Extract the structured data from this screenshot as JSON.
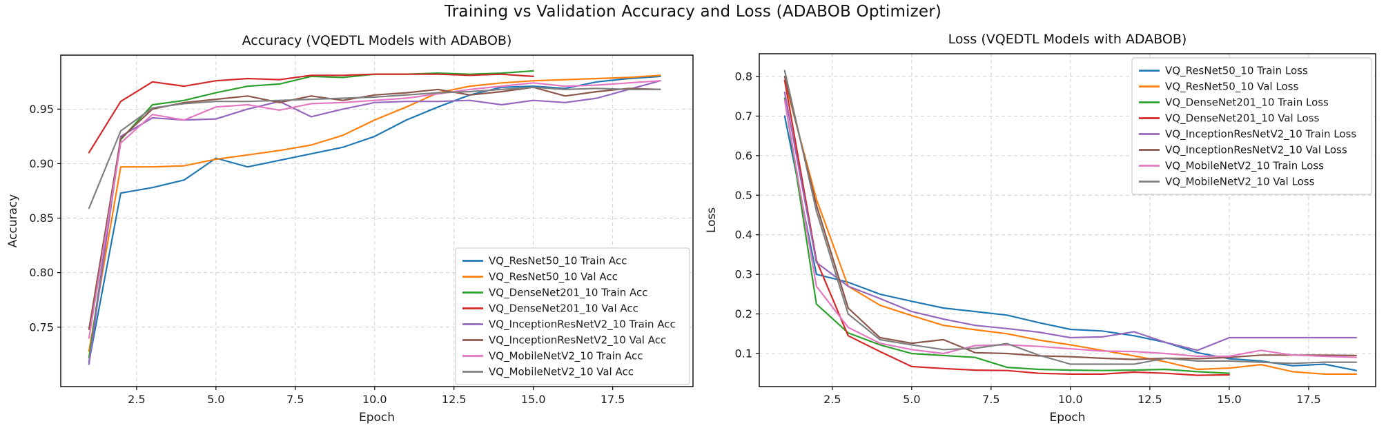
{
  "figure": {
    "title": "Training vs Validation Accuracy and Loss (ADABOB Optimizer)",
    "background": "#ffffff",
    "grid_color": "#cfcfcf",
    "text_color": "#1a1a1a"
  },
  "chart_data": [
    {
      "id": "accuracy",
      "type": "line",
      "title": "Accuracy (VQEDTL Models with ADABOB)",
      "xlabel": "Epoch",
      "ylabel": "Accuracy",
      "xlim": [
        0.11,
        20.03
      ],
      "ylim": [
        0.6955,
        0.9995
      ],
      "xticks": [
        2.5,
        5.0,
        7.5,
        10.0,
        12.5,
        15.0,
        17.5
      ],
      "xtick_labels": [
        "2.5",
        "5.0",
        "7.5",
        "10.0",
        "12.5",
        "15.0",
        "17.5"
      ],
      "yticks": [
        0.75,
        0.8,
        0.85,
        0.9,
        0.95
      ],
      "ytick_labels": [
        "0.75",
        "0.80",
        "0.85",
        "0.90",
        "0.95"
      ],
      "grid": true,
      "legend_position": "lower right",
      "x_start_epoch": 1,
      "series": [
        {
          "name": "VQ_ResNet50_10 Train Acc",
          "color": "#1f77b4",
          "values": [
            0.718,
            0.873,
            0.878,
            0.885,
            0.905,
            0.897,
            0.903,
            0.909,
            0.915,
            0.925,
            0.94,
            0.952,
            0.963,
            0.97,
            0.971,
            0.969,
            0.975,
            0.978,
            0.98
          ]
        },
        {
          "name": "VQ_ResNet50_10 Val Acc",
          "color": "#ff7f0e",
          "values": [
            0.728,
            0.897,
            0.897,
            0.898,
            0.904,
            0.908,
            0.912,
            0.917,
            0.926,
            0.94,
            0.952,
            0.965,
            0.971,
            0.974,
            0.976,
            0.977,
            0.978,
            0.979,
            0.981
          ]
        },
        {
          "name": "VQ_DenseNet201_10 Train Acc",
          "color": "#2ca02c",
          "values": [
            0.722,
            0.922,
            0.954,
            0.958,
            0.965,
            0.971,
            0.973,
            0.98,
            0.979,
            0.982,
            0.982,
            0.983,
            0.982,
            0.983,
            0.985
          ]
        },
        {
          "name": "VQ_DenseNet201_10 Val Acc",
          "color": "#d62728",
          "values": [
            0.91,
            0.957,
            0.975,
            0.971,
            0.976,
            0.978,
            0.977,
            0.981,
            0.981,
            0.982,
            0.982,
            0.982,
            0.981,
            0.982,
            0.98
          ]
        },
        {
          "name": "VQ_InceptionResNetV2_10 Train Acc",
          "color": "#9467bd",
          "values": [
            0.716,
            0.925,
            0.942,
            0.94,
            0.941,
            0.95,
            0.957,
            0.943,
            0.95,
            0.956,
            0.957,
            0.957,
            0.958,
            0.954,
            0.958,
            0.956,
            0.96,
            0.968,
            0.976
          ]
        },
        {
          "name": "VQ_InceptionResNetV2_10 Val Acc",
          "color": "#8c564b",
          "values": [
            0.748,
            0.923,
            0.95,
            0.956,
            0.959,
            0.962,
            0.956,
            0.962,
            0.958,
            0.963,
            0.965,
            0.968,
            0.963,
            0.966,
            0.97,
            0.962,
            0.966,
            0.969,
            0.968
          ]
        },
        {
          "name": "VQ_MobileNetV2_10 Train Acc",
          "color": "#e377c2",
          "values": [
            0.74,
            0.919,
            0.945,
            0.94,
            0.952,
            0.954,
            0.949,
            0.955,
            0.956,
            0.958,
            0.96,
            0.964,
            0.968,
            0.971,
            0.974,
            0.971,
            0.972,
            0.974,
            0.976
          ]
        },
        {
          "name": "VQ_MobileNetV2_10 Val Acc",
          "color": "#7f7f7f",
          "values": [
            0.859,
            0.93,
            0.951,
            0.955,
            0.957,
            0.957,
            0.958,
            0.959,
            0.96,
            0.961,
            0.963,
            0.965,
            0.966,
            0.968,
            0.97,
            0.968,
            0.969,
            0.968,
            0.968
          ]
        }
      ]
    },
    {
      "id": "loss",
      "type": "line",
      "title": "Loss (VQEDTL Models with ADABOB)",
      "xlabel": "Epoch",
      "ylabel": "Loss",
      "xlim": [
        0.2,
        19.61
      ],
      "ylim": [
        0.0164,
        0.8575
      ],
      "xticks": [
        2.5,
        5.0,
        7.5,
        10.0,
        12.5,
        15.0,
        17.5
      ],
      "xtick_labels": [
        "2.5",
        "5.0",
        "7.5",
        "10.0",
        "12.5",
        "15.0",
        "17.5"
      ],
      "yticks": [
        0.1,
        0.2,
        0.3,
        0.4,
        0.5,
        0.6,
        0.7,
        0.8
      ],
      "ytick_labels": [
        "0.1",
        "0.2",
        "0.3",
        "0.4",
        "0.5",
        "0.6",
        "0.7",
        "0.8"
      ],
      "grid": true,
      "legend_position": "upper right",
      "x_start_epoch": 1,
      "series": [
        {
          "name": "VQ_ResNet50_10 Train Loss",
          "color": "#1f77b4",
          "values": [
            0.7,
            0.3,
            0.28,
            0.25,
            0.232,
            0.215,
            0.206,
            0.197,
            0.178,
            0.161,
            0.157,
            0.145,
            0.128,
            0.102,
            0.087,
            0.081,
            0.069,
            0.073,
            0.057
          ]
        },
        {
          "name": "VQ_ResNet50_10 Val Loss",
          "color": "#ff7f0e",
          "values": [
            0.79,
            0.49,
            0.27,
            0.222,
            0.196,
            0.171,
            0.16,
            0.15,
            0.134,
            0.122,
            0.108,
            0.094,
            0.079,
            0.06,
            0.063,
            0.072,
            0.054,
            0.048,
            0.048
          ]
        },
        {
          "name": "VQ_DenseNet201_10 Train Loss",
          "color": "#2ca02c",
          "values": [
            0.745,
            0.225,
            0.152,
            0.122,
            0.1,
            0.095,
            0.09,
            0.065,
            0.06,
            0.058,
            0.057,
            0.058,
            0.06,
            0.054,
            0.05
          ]
        },
        {
          "name": "VQ_DenseNet201_10 Val Loss",
          "color": "#d62728",
          "values": [
            0.79,
            0.335,
            0.145,
            0.105,
            0.067,
            0.062,
            0.058,
            0.057,
            0.05,
            0.048,
            0.048,
            0.053,
            0.05,
            0.045,
            0.046
          ]
        },
        {
          "name": "VQ_InceptionResNetV2_10 Train Loss",
          "color": "#9467bd",
          "values": [
            0.76,
            0.33,
            0.27,
            0.239,
            0.206,
            0.187,
            0.171,
            0.163,
            0.154,
            0.14,
            0.142,
            0.155,
            0.128,
            0.108,
            0.14,
            0.14,
            0.14,
            0.14,
            0.14
          ]
        },
        {
          "name": "VQ_InceptionResNetV2_10 Val Loss",
          "color": "#8c564b",
          "values": [
            0.8,
            0.475,
            0.215,
            0.14,
            0.126,
            0.135,
            0.102,
            0.1,
            0.094,
            0.092,
            0.088,
            0.085,
            0.088,
            0.087,
            0.09,
            0.096,
            0.096,
            0.096,
            0.095
          ]
        },
        {
          "name": "VQ_MobileNetV2_10 Train Loss",
          "color": "#e377c2",
          "values": [
            0.74,
            0.27,
            0.166,
            0.126,
            0.11,
            0.1,
            0.12,
            0.122,
            0.118,
            0.112,
            0.106,
            0.105,
            0.1,
            0.093,
            0.093,
            0.108,
            0.096,
            0.093,
            0.09
          ]
        },
        {
          "name": "VQ_MobileNetV2_10 Val Loss",
          "color": "#7f7f7f",
          "values": [
            0.815,
            0.46,
            0.2,
            0.135,
            0.122,
            0.11,
            0.113,
            0.125,
            0.096,
            0.073,
            0.073,
            0.073,
            0.088,
            0.081,
            0.081,
            0.078,
            0.075,
            0.078,
            0.078
          ]
        }
      ]
    }
  ]
}
